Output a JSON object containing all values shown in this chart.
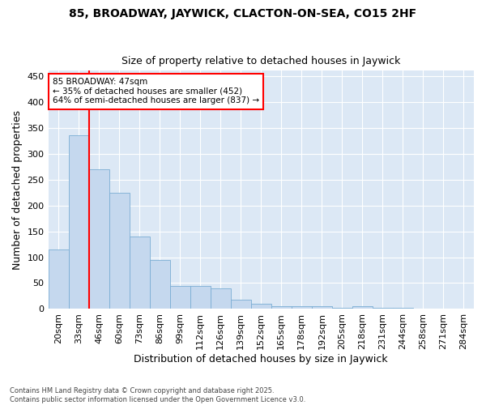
{
  "title": "85, BROADWAY, JAYWICK, CLACTON-ON-SEA, CO15 2HF",
  "subtitle": "Size of property relative to detached houses in Jaywick",
  "xlabel": "Distribution of detached houses by size in Jaywick",
  "ylabel": "Number of detached properties",
  "categories": [
    "20sqm",
    "33sqm",
    "46sqm",
    "60sqm",
    "73sqm",
    "86sqm",
    "99sqm",
    "112sqm",
    "126sqm",
    "139sqm",
    "152sqm",
    "165sqm",
    "178sqm",
    "192sqm",
    "205sqm",
    "218sqm",
    "231sqm",
    "244sqm",
    "258sqm",
    "271sqm",
    "284sqm"
  ],
  "values": [
    115,
    335,
    270,
    225,
    140,
    95,
    45,
    45,
    40,
    18,
    10,
    5,
    5,
    5,
    3,
    6,
    2,
    2,
    1,
    1,
    0
  ],
  "bar_color": "#c5d8ee",
  "bar_edgecolor": "#7aadd4",
  "background_color": "#dce8f5",
  "red_line_index": 2,
  "annotation_text": "85 BROADWAY: 47sqm\n← 35% of detached houses are smaller (452)\n64% of semi-detached houses are larger (837) →",
  "ylim": [
    0,
    460
  ],
  "yticks": [
    0,
    50,
    100,
    150,
    200,
    250,
    300,
    350,
    400,
    450
  ],
  "footer": "Contains HM Land Registry data © Crown copyright and database right 2025.\nContains public sector information licensed under the Open Government Licence v3.0.",
  "title_fontsize": 10,
  "subtitle_fontsize": 9,
  "xlabel_fontsize": 9,
  "ylabel_fontsize": 9,
  "tick_fontsize": 8
}
